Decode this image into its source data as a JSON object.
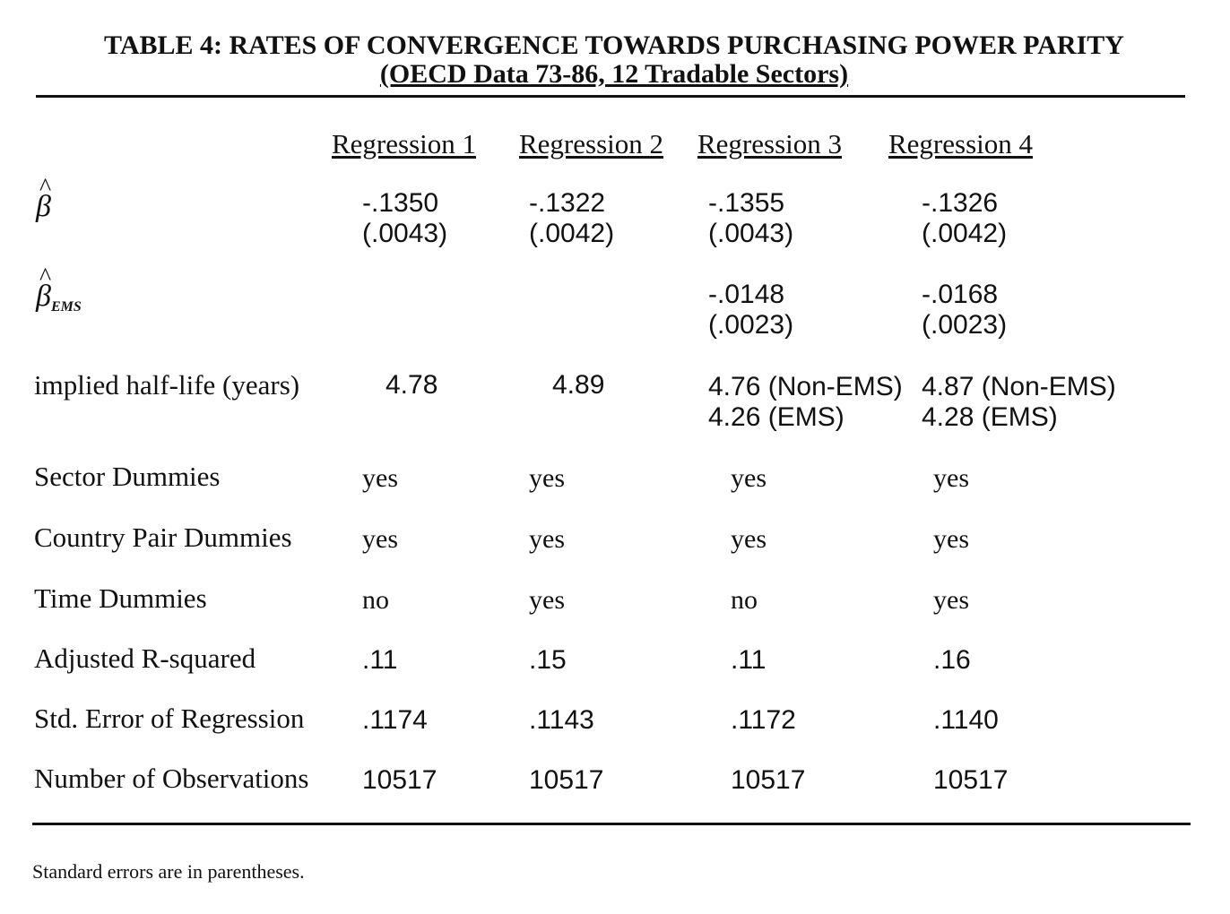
{
  "title": {
    "line1": "TABLE 4: RATES OF CONVERGENCE TOWARDS PURCHASING POWER PARITY",
    "line2": "(OECD Data 73-86, 12 Tradable Sectors)"
  },
  "columns": [
    "Regression 1",
    "Regression 2",
    "Regression 3",
    "Regression 4"
  ],
  "rows": {
    "beta": {
      "symbol": "β",
      "hat": "^",
      "r1": [
        "-.1350",
        "(.0043)"
      ],
      "r2": [
        "-.1322",
        "(.0042)"
      ],
      "r3": [
        "-.1355",
        "(.0043)"
      ],
      "r4": [
        "-.1326",
        "(.0042)"
      ]
    },
    "beta_ems": {
      "symbol": "β",
      "hat": "^",
      "subscript": "EMS",
      "r3": [
        "-.0148",
        "(.0023)"
      ],
      "r4": [
        "-.0168",
        "(.0023)"
      ]
    },
    "half_life": {
      "label": "implied half-life (years)",
      "r1": "4.78",
      "r2": "4.89",
      "r3": [
        "4.76 (Non-EMS)",
        "4.26 (EMS)"
      ],
      "r4": [
        "4.87 (Non-EMS)",
        "4.28 (EMS)"
      ]
    },
    "sector_dummies": {
      "label": "Sector Dummies",
      "values": [
        "yes",
        "yes",
        "yes",
        "yes"
      ]
    },
    "country_pair_dummies": {
      "label": "Country Pair Dummies",
      "values": [
        "yes",
        "yes",
        "yes",
        "yes"
      ]
    },
    "time_dummies": {
      "label": "Time Dummies",
      "values": [
        "no",
        "yes",
        "no",
        "yes"
      ]
    },
    "adj_r2": {
      "label": "Adjusted R-squared",
      "values": [
        ".11",
        ".15",
        ".11",
        ".16"
      ]
    },
    "std_err": {
      "label": "Std. Error of Regression",
      "values": [
        ".1174",
        ".1143",
        ".1172",
        ".1140"
      ]
    },
    "n_obs": {
      "label": "Number of Observations",
      "values": [
        "10517",
        "10517",
        "10517",
        "10517"
      ]
    }
  },
  "note": "Standard errors are in parentheses."
}
